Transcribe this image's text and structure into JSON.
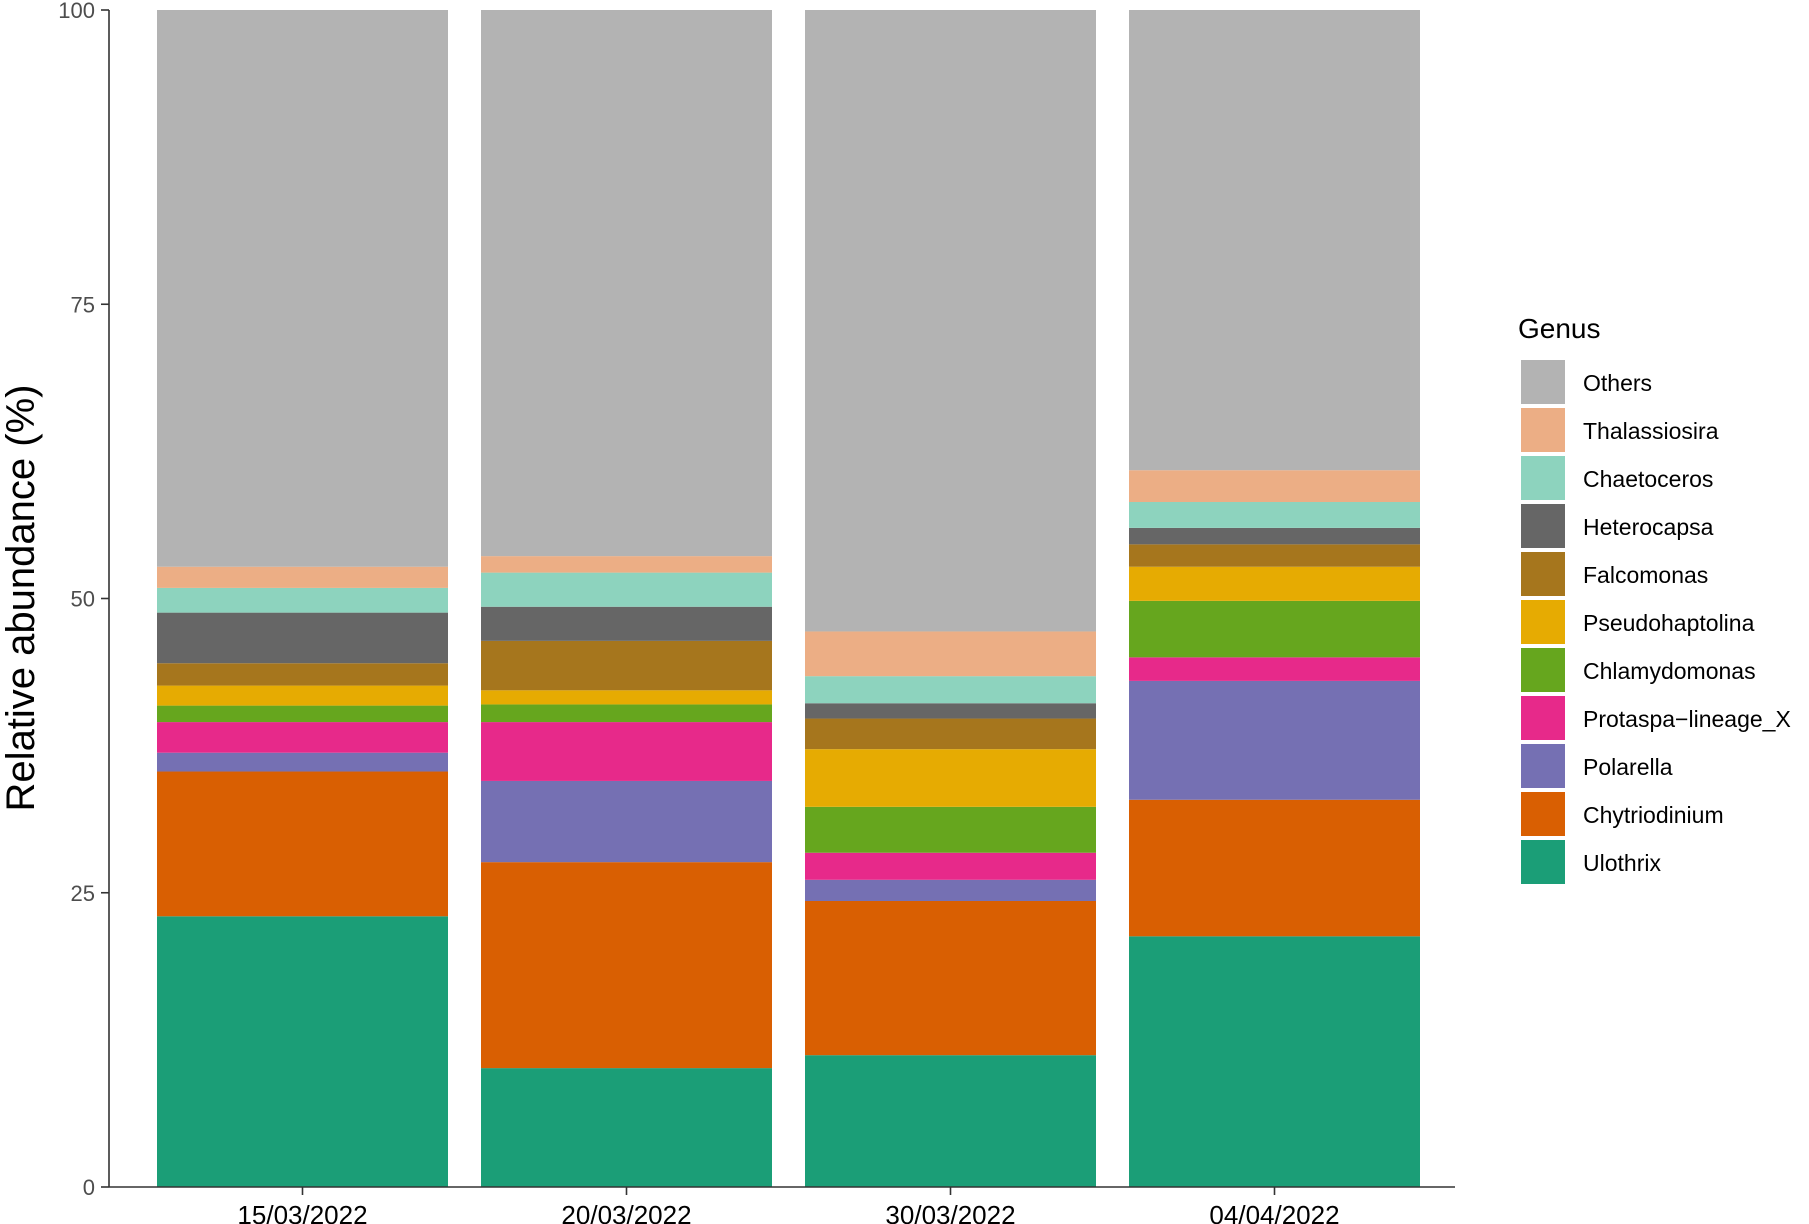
{
  "chart_data": {
    "type": "bar",
    "stacked": true,
    "title": "",
    "xlabel": "",
    "ylabel": "Relative abundance (%)",
    "ylim": [
      0,
      100
    ],
    "yticks": [
      0,
      25,
      50,
      75,
      100
    ],
    "grid": false,
    "categories": [
      "15/03/2022",
      "20/03/2022",
      "30/03/2022",
      "04/04/2022"
    ],
    "legend": {
      "title": "Genus",
      "position": "right"
    },
    "series": [
      {
        "name": "Ulothrix",
        "color": "#1B9E77",
        "values": [
          23.0,
          10.1,
          11.2,
          21.3
        ]
      },
      {
        "name": "Chytriodinium",
        "color": "#D95F02",
        "values": [
          12.3,
          17.5,
          13.1,
          11.6
        ]
      },
      {
        "name": "Polarella",
        "color": "#7570B3",
        "values": [
          1.6,
          6.9,
          1.8,
          10.1
        ]
      },
      {
        "name": "Protaspa−lineage_X",
        "color": "#E7298A",
        "values": [
          2.6,
          5.0,
          2.3,
          2.0
        ]
      },
      {
        "name": "Chlamydomonas",
        "color": "#66A61E",
        "values": [
          1.4,
          1.5,
          3.9,
          4.8
        ]
      },
      {
        "name": "Pseudohaptolina",
        "color": "#E6AB02",
        "values": [
          1.7,
          1.2,
          4.9,
          2.9
        ]
      },
      {
        "name": "Falcomonas",
        "color": "#A6761D",
        "values": [
          1.9,
          4.2,
          2.6,
          1.9
        ]
      },
      {
        "name": "Heterocapsa",
        "color": "#666666",
        "values": [
          4.3,
          2.9,
          1.3,
          1.4
        ]
      },
      {
        "name": "Chaetoceros",
        "color": "#8DD3BE",
        "values": [
          2.1,
          2.9,
          2.3,
          2.2
        ]
      },
      {
        "name": "Thalassiosira",
        "color": "#ECAE85",
        "values": [
          1.8,
          1.4,
          3.8,
          2.7
        ]
      },
      {
        "name": "Others",
        "color": "#B3B3B3",
        "values": [
          47.3,
          46.4,
          52.8,
          39.1
        ]
      }
    ]
  }
}
